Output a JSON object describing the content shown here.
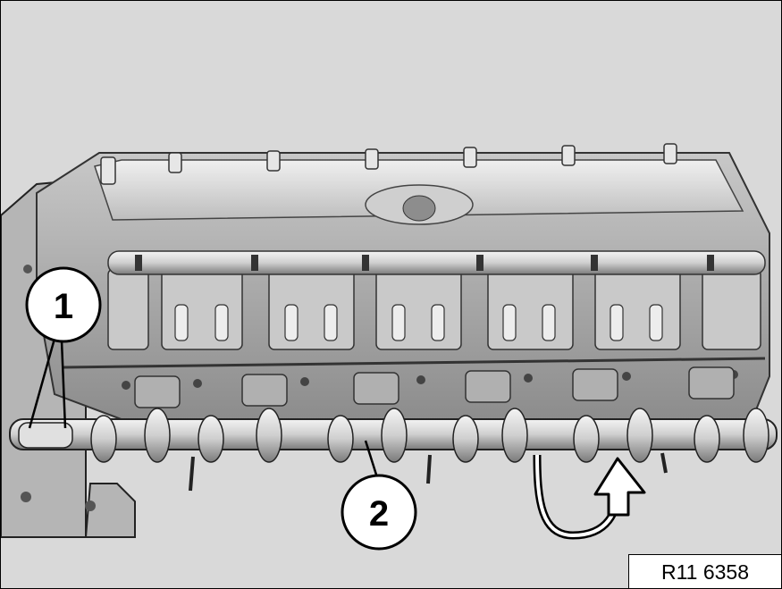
{
  "illustration": {
    "subject": "cylinder-head-with-camshaft",
    "arrow_icon": "rotate-arrow-icon"
  },
  "callouts": [
    {
      "number": "1"
    },
    {
      "number": "2"
    }
  ],
  "figure_id": "R11 6358",
  "colors": {
    "background": "#d9d9d9",
    "metal_light": "#e8e8e8",
    "metal_mid": "#bdbdbd",
    "metal_dark": "#6e6e6e",
    "ink": "#000000"
  }
}
